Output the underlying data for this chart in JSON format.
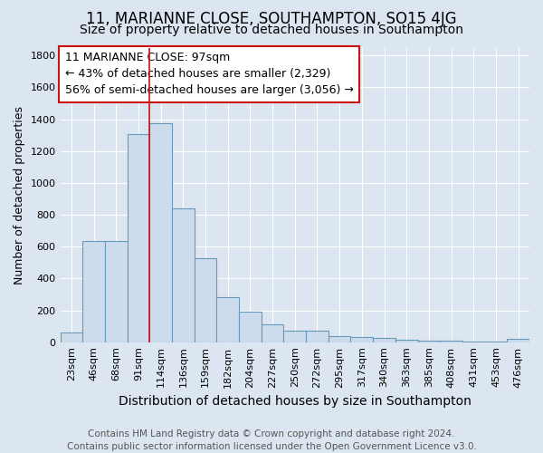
{
  "title": "11, MARIANNE CLOSE, SOUTHAMPTON, SO15 4JG",
  "subtitle": "Size of property relative to detached houses in Southampton",
  "xlabel": "Distribution of detached houses by size in Southampton",
  "ylabel": "Number of detached properties",
  "categories": [
    "23sqm",
    "46sqm",
    "68sqm",
    "91sqm",
    "114sqm",
    "136sqm",
    "159sqm",
    "182sqm",
    "204sqm",
    "227sqm",
    "250sqm",
    "272sqm",
    "295sqm",
    "317sqm",
    "340sqm",
    "363sqm",
    "385sqm",
    "408sqm",
    "431sqm",
    "453sqm",
    "476sqm"
  ],
  "values": [
    60,
    635,
    635,
    1305,
    1375,
    840,
    525,
    285,
    190,
    110,
    70,
    70,
    40,
    30,
    25,
    15,
    10,
    10,
    5,
    5,
    20
  ],
  "bar_color": "#cddcec",
  "bar_edge_color": "#6699bb",
  "figure_bg_color": "#dce6f0",
  "axes_bg_color": "#dce6f0",
  "red_line_x": 3.5,
  "annotation_line1": "11 MARIANNE CLOSE: 97sqm",
  "annotation_line2": "← 43% of detached houses are smaller (2,329)",
  "annotation_line3": "56% of semi-detached houses are larger (3,056) →",
  "annotation_box_facecolor": "#ffffff",
  "annotation_box_edgecolor": "#cc1111",
  "ylim": [
    0,
    1850
  ],
  "yticks": [
    0,
    200,
    400,
    600,
    800,
    1000,
    1200,
    1400,
    1600,
    1800
  ],
  "footer_line1": "Contains HM Land Registry data © Crown copyright and database right 2024.",
  "footer_line2": "Contains public sector information licensed under the Open Government Licence v3.0.",
  "title_fontsize": 12,
  "subtitle_fontsize": 10,
  "xlabel_fontsize": 10,
  "ylabel_fontsize": 9,
  "tick_fontsize": 8,
  "annotation_fontsize": 9,
  "footer_fontsize": 7.5,
  "grid_color": "#ffffff",
  "grid_linewidth": 0.8
}
